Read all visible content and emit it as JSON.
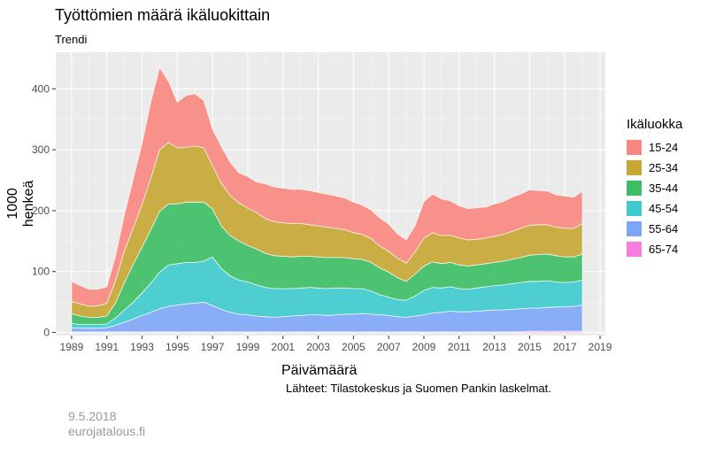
{
  "header": {
    "title": "Työttömien määrä ikäluokittain",
    "subtitle": "Trendi"
  },
  "footer": {
    "source": "Lähteet: Tilastokeskus ja Suomen Pankin laskelmat.",
    "date": "9.5.2018",
    "site": "eurojatalous.fi"
  },
  "chart_data": {
    "type": "area",
    "stacked": true,
    "title": "Työttömien määrä ikäluokittain",
    "subtitle": "Trendi",
    "xlabel": "Päivämäärä",
    "ylabel": "1000 henkeä",
    "xlim": [
      1988.1,
      2019.3
    ],
    "ylim": [
      -5,
      460
    ],
    "xticks": [
      "1989",
      "1991",
      "1993",
      "1995",
      "1997",
      "1999",
      "2001",
      "2003",
      "2005",
      "2007",
      "2009",
      "2011",
      "2013",
      "2015",
      "2017",
      "2019"
    ],
    "yticks": [
      "0",
      "100",
      "200",
      "300",
      "400"
    ],
    "grid": true,
    "legend": {
      "title": "Ikäluokka",
      "position": "right"
    },
    "x": [
      1989.0,
      1989.5,
      1990.0,
      1990.5,
      1991.0,
      1991.5,
      1992.0,
      1992.5,
      1993.0,
      1993.5,
      1994.0,
      1994.5,
      1995.0,
      1995.5,
      1996.0,
      1996.5,
      1997.0,
      1997.5,
      1998.0,
      1998.5,
      1999.0,
      1999.5,
      2000.0,
      2000.5,
      2001.0,
      2001.5,
      2002.0,
      2002.5,
      2003.0,
      2003.5,
      2004.0,
      2004.5,
      2005.0,
      2005.5,
      2006.0,
      2006.5,
      2007.0,
      2007.5,
      2008.0,
      2008.5,
      2009.0,
      2009.5,
      2010.0,
      2010.5,
      2011.0,
      2011.5,
      2012.0,
      2012.5,
      2013.0,
      2013.5,
      2014.0,
      2014.5,
      2015.0,
      2015.5,
      2016.0,
      2016.5,
      2017.0,
      2017.5,
      2018.0
    ],
    "series": [
      {
        "name": "65-74",
        "color": "#f57ee0",
        "values": [
          1,
          1,
          1,
          1,
          1,
          1,
          1,
          1,
          1,
          1,
          1,
          1,
          1,
          1,
          1,
          1,
          1,
          1,
          1,
          1,
          1,
          1,
          1,
          1,
          1,
          1,
          1,
          1,
          1,
          1,
          1,
          1,
          1,
          1,
          1,
          1,
          1,
          1,
          1,
          1,
          1,
          1,
          1,
          1,
          1,
          1,
          1,
          1,
          1,
          1,
          1,
          1,
          2,
          2,
          2,
          2,
          2,
          2,
          2
        ]
      },
      {
        "name": "55-64",
        "color": "#7ea6f8",
        "values": [
          7,
          6,
          6,
          6,
          7,
          11,
          16,
          21,
          27,
          32,
          38,
          42,
          44,
          46,
          47,
          49,
          43,
          37,
          32,
          29,
          28,
          26,
          25,
          24,
          25,
          26,
          27,
          28,
          28,
          27,
          28,
          29,
          29,
          30,
          29,
          28,
          27,
          25,
          24,
          26,
          28,
          31,
          32,
          34,
          33,
          33,
          34,
          35,
          36,
          36,
          37,
          38,
          38,
          38,
          39,
          40,
          40,
          41,
          43
        ]
      },
      {
        "name": "45-54",
        "color": "#3ecbcf",
        "values": [
          7,
          6,
          6,
          6,
          6,
          12,
          20,
          28,
          37,
          48,
          60,
          68,
          68,
          68,
          67,
          67,
          80,
          67,
          60,
          56,
          54,
          51,
          48,
          47,
          46,
          45,
          45,
          45,
          44,
          44,
          44,
          43,
          42,
          41,
          38,
          33,
          30,
          28,
          28,
          33,
          40,
          42,
          40,
          40,
          38,
          37,
          38,
          39,
          40,
          41,
          42,
          43,
          44,
          44,
          44,
          41,
          40,
          40,
          41
        ]
      },
      {
        "name": "35-44",
        "color": "#3cbf64",
        "values": [
          16,
          14,
          12,
          12,
          13,
          25,
          45,
          62,
          75,
          88,
          100,
          100,
          98,
          99,
          99,
          97,
          79,
          70,
          66,
          64,
          60,
          59,
          56,
          54,
          53,
          52,
          52,
          51,
          51,
          51,
          50,
          50,
          49,
          48,
          47,
          44,
          41,
          36,
          31,
          36,
          40,
          42,
          40,
          40,
          39,
          38,
          38,
          38,
          38,
          39,
          40,
          41,
          43,
          44,
          44,
          43,
          42,
          41,
          43
        ]
      },
      {
        "name": "25-34",
        "color": "#c8a633",
        "values": [
          20,
          20,
          18,
          19,
          21,
          37,
          52,
          60,
          70,
          85,
          101,
          101,
          92,
          90,
          92,
          89,
          71,
          70,
          66,
          63,
          61,
          60,
          57,
          56,
          55,
          55,
          54,
          52,
          51,
          50,
          48,
          46,
          43,
          41,
          39,
          36,
          34,
          32,
          30,
          36,
          46,
          48,
          46,
          45,
          44,
          43,
          42,
          42,
          43,
          44,
          46,
          48,
          49,
          49,
          48,
          47,
          47,
          47,
          50
        ]
      },
      {
        "name": "15-24",
        "color": "#f8877f",
        "values": [
          33,
          30,
          28,
          27,
          27,
          40,
          60,
          80,
          100,
          125,
          135,
          100,
          75,
          85,
          86,
          78,
          60,
          60,
          55,
          49,
          52,
          50,
          57,
          57,
          57,
          56,
          56,
          56,
          55,
          54,
          53,
          52,
          50,
          48,
          47,
          46,
          45,
          40,
          38,
          43,
          60,
          63,
          60,
          56,
          53,
          51,
          52,
          51,
          53,
          54,
          56,
          56,
          58,
          56,
          55,
          53,
          53,
          51,
          53
        ]
      }
    ]
  }
}
